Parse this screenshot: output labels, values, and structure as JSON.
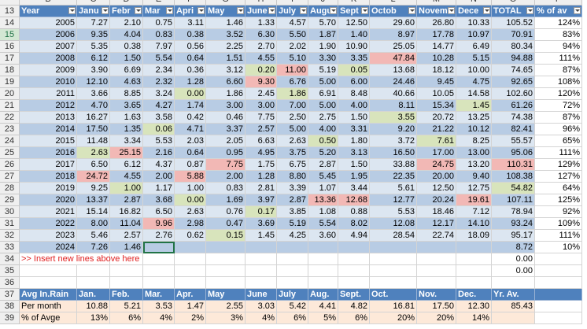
{
  "sheet": {
    "column_letters": [
      "B",
      "C",
      "D",
      "E",
      "F",
      "G",
      "H",
      "I",
      "J",
      "K",
      "L",
      "M",
      "N",
      "O",
      "P"
    ],
    "row_numbers": [
      13,
      14,
      15,
      16,
      17,
      18,
      19,
      20,
      21,
      22,
      23,
      24,
      25,
      26,
      27,
      28,
      29,
      30,
      31,
      32,
      33,
      34,
      35,
      36,
      37,
      38,
      39
    ],
    "cells": [
      [
        "Year",
        "Janu",
        "Febr",
        "Mar",
        "Apri",
        "May",
        "June",
        "July",
        "Augu",
        "Sept",
        "Octob",
        "Novem",
        "Dece",
        "TOTAL",
        "% of av"
      ],
      [
        "2005",
        "7.27",
        "2.10",
        "0.75",
        "3.11",
        "1.46",
        "1.33",
        "4.57",
        "5.70",
        "12.50",
        "29.60",
        "26.80",
        "10.33",
        "105.52",
        "124%"
      ],
      [
        "2006",
        "9.35",
        "4.04",
        "0.83",
        "0.38",
        "3.52",
        "6.30",
        "5.50",
        "1.87",
        "1.40",
        "8.97",
        "17.78",
        "10.97",
        "70.91",
        "83%"
      ],
      [
        "2007",
        "5.35",
        "0.38",
        "7.97",
        "0.56",
        "2.25",
        "2.70",
        "2.02",
        "1.90",
        "10.90",
        "25.05",
        "14.77",
        "6.49",
        "80.34",
        "94%"
      ],
      [
        "2008",
        "6.12",
        "1.50",
        "5.54",
        "0.64",
        "1.51",
        "4.55",
        "5.10",
        "3.30",
        "3.35",
        "47.84",
        "10.28",
        "5.15",
        "94.88",
        "111%"
      ],
      [
        "2009",
        "3.90",
        "6.69",
        "2.34",
        "0.36",
        "3.12",
        "0.20",
        "11.00",
        "5.19",
        "0.05",
        "13.68",
        "18.12",
        "10.00",
        "74.65",
        "87%"
      ],
      [
        "2010",
        "12.10",
        "4.63",
        "2.32",
        "1.28",
        "6.60",
        "9.30",
        "6.76",
        "5.00",
        "6.00",
        "24.46",
        "9.45",
        "4.75",
        "92.65",
        "108%"
      ],
      [
        "2011",
        "3.66",
        "8.85",
        "3.24",
        "0.00",
        "1.86",
        "2.45",
        "1.86",
        "6.91",
        "8.48",
        "40.66",
        "10.05",
        "14.58",
        "102.60",
        "120%"
      ],
      [
        "2012",
        "4.70",
        "3.65",
        "4.27",
        "1.74",
        "3.00",
        "3.00",
        "7.00",
        "5.00",
        "4.00",
        "8.11",
        "15.34",
        "1.45",
        "61.26",
        "72%"
      ],
      [
        "2013",
        "16.27",
        "1.63",
        "3.58",
        "0.42",
        "0.46",
        "7.75",
        "2.50",
        "2.75",
        "1.50",
        "3.55",
        "20.72",
        "13.25",
        "74.38",
        "87%"
      ],
      [
        "2014",
        "17.50",
        "1.35",
        "0.06",
        "4.71",
        "3.37",
        "2.57",
        "5.00",
        "4.00",
        "3.31",
        "9.20",
        "21.22",
        "10.12",
        "82.41",
        "96%"
      ],
      [
        "2015",
        "11.48",
        "3.34",
        "5.53",
        "2.03",
        "2.05",
        "6.63",
        "2.63",
        "0.50",
        "1.80",
        "3.72",
        "7.61",
        "8.25",
        "55.57",
        "65%"
      ],
      [
        "2016",
        "2.63",
        "25.15",
        "2.16",
        "0.64",
        "0.95",
        "4.95",
        "3.75",
        "5.20",
        "3.13",
        "16.50",
        "17.00",
        "13.00",
        "95.06",
        "111%"
      ],
      [
        "2017",
        "6.50",
        "6.12",
        "4.37",
        "0.87",
        "7.75",
        "1.75",
        "6.75",
        "2.87",
        "1.50",
        "33.88",
        "24.75",
        "13.20",
        "110.31",
        "129%"
      ],
      [
        "2018",
        "24.72",
        "4.55",
        "2.00",
        "5.88",
        "2.00",
        "1.28",
        "8.80",
        "5.45",
        "1.95",
        "22.35",
        "20.00",
        "9.40",
        "108.38",
        "127%"
      ],
      [
        "2019",
        "9.25",
        "1.00",
        "1.17",
        "1.00",
        "0.83",
        "2.81",
        "3.39",
        "1.07",
        "3.44",
        "5.61",
        "12.50",
        "12.75",
        "54.82",
        "64%"
      ],
      [
        "2020",
        "13.37",
        "2.87",
        "3.68",
        "0.00",
        "1.69",
        "3.97",
        "2.87",
        "13.36",
        "12.68",
        "12.77",
        "20.24",
        "19.61",
        "107.11",
        "125%"
      ],
      [
        "2021",
        "15.14",
        "16.82",
        "6.50",
        "2.63",
        "0.76",
        "0.17",
        "3.85",
        "1.08",
        "0.88",
        "5.53",
        "18.46",
        "7.12",
        "78.94",
        "92%"
      ],
      [
        "2022",
        "8.00",
        "11.04",
        "9.96",
        "2.98",
        "0.47",
        "3.69",
        "5.19",
        "5.54",
        "8.02",
        "12.08",
        "12.17",
        "14.10",
        "93.24",
        "109%"
      ],
      [
        "2023",
        "5.46",
        "2.57",
        "2.76",
        "0.62",
        "0.15",
        "1.45",
        "4.25",
        "3.60",
        "4.94",
        "28.54",
        "22.74",
        "18.09",
        "95.17",
        "111%"
      ],
      [
        "2024",
        "7.26",
        "1.46",
        null,
        null,
        null,
        null,
        null,
        null,
        null,
        null,
        null,
        null,
        "8.72",
        "10%"
      ],
      [
        ">> Insert new lines above here",
        null,
        null,
        null,
        null,
        null,
        null,
        null,
        null,
        null,
        null,
        null,
        null,
        "0.00",
        null
      ],
      [
        null,
        null,
        null,
        null,
        null,
        null,
        null,
        null,
        null,
        null,
        null,
        null,
        null,
        "0.00",
        null
      ],
      [
        null,
        null,
        null,
        null,
        null,
        null,
        null,
        null,
        null,
        null,
        null,
        null,
        null,
        null,
        null
      ],
      [
        "Avg In.Rain",
        "Jan.",
        "Feb.",
        "Mar.",
        "Apr.",
        "May",
        "June",
        "July",
        "Aug.",
        "Sept.",
        "Oct.",
        "Nov.",
        "Dec.",
        "Yr. Av.",
        null
      ],
      [
        "Per month",
        "10.88",
        "5.21",
        "3.53",
        "1.47",
        "2.55",
        "3.03",
        "5.42",
        "4.41",
        "4.82",
        "16.81",
        "17.50",
        "12.30",
        "85.43",
        null
      ],
      [
        "% of Avge",
        "13%",
        "6%",
        "4%",
        "2%",
        "3%",
        "4%",
        "6%",
        "5%",
        "6%",
        "20%",
        "20%",
        "14%",
        null,
        null
      ]
    ],
    "highlights": {
      "low": {
        "color": "#d8e4bc",
        "cells": [
          [
            5,
            6
          ],
          [
            5,
            9
          ],
          [
            7,
            4
          ],
          [
            7,
            7
          ],
          [
            8,
            12
          ],
          [
            9,
            10
          ],
          [
            10,
            3
          ],
          [
            11,
            8
          ],
          [
            11,
            11
          ],
          [
            12,
            1
          ],
          [
            15,
            2
          ],
          [
            15,
            13
          ],
          [
            16,
            4
          ],
          [
            17,
            6
          ],
          [
            19,
            5
          ]
        ]
      },
      "high": {
        "color": "#f2b8b5",
        "cells": [
          [
            4,
            10
          ],
          [
            5,
            7
          ],
          [
            6,
            6
          ],
          [
            12,
            2
          ],
          [
            13,
            5
          ],
          [
            13,
            11
          ],
          [
            13,
            13
          ],
          [
            14,
            1
          ],
          [
            14,
            4
          ],
          [
            16,
            8
          ],
          [
            16,
            9
          ],
          [
            16,
            12
          ],
          [
            18,
            3
          ]
        ]
      }
    }
  }
}
